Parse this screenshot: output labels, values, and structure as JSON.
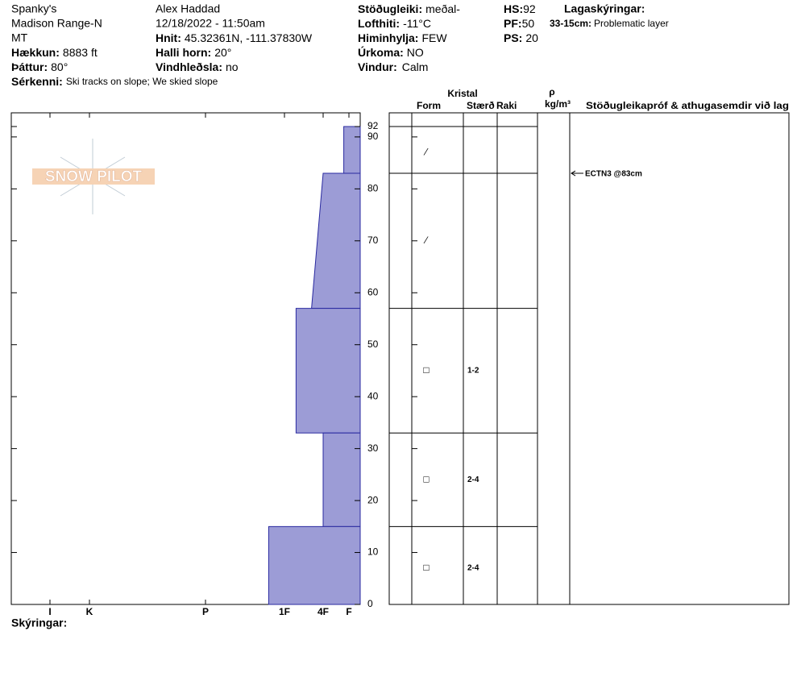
{
  "header": {
    "site": "Spanky's",
    "range": "Madison Range-N",
    "state": "MT",
    "observer": "Alex Haddad",
    "datetime": "12/18/2022 - 11:50am",
    "elevation": {
      "label": "Hækkun:",
      "value": "8883 ft"
    },
    "aspect": {
      "label": "Þáttur:",
      "value": "80°"
    },
    "features": {
      "label": "Sérkenni:",
      "value": "Ski tracks on slope; We skied slope"
    },
    "coords": {
      "label": "Hnit:",
      "value": "45.32361N, -111.37830W"
    },
    "slope": {
      "label": "Halli horn:",
      "value": "20°"
    },
    "wind_loading": {
      "label": "Vindhleðsla:",
      "value": "no"
    },
    "stability": {
      "label": "Stöðugleiki:",
      "value": "meðal-"
    },
    "air_temp": {
      "label": "Lofthiti:",
      "value": "-11°C"
    },
    "sky": {
      "label": "Himinhylja:",
      "value": "FEW"
    },
    "precip": {
      "label": "Úrkoma:",
      "value": "NO"
    },
    "wind": {
      "label": "Vindur:",
      "value": "Calm"
    },
    "hs": {
      "label": "HS:",
      "value": "92"
    },
    "pf": {
      "label": "PF:",
      "value": "50"
    },
    "ps": {
      "label": "PS:",
      "value": "20"
    },
    "layer_notes": {
      "title": "Lagaskýringar:",
      "range": "33-15cm:",
      "text": "Problematic layer"
    }
  },
  "logo": {
    "text": "SNOW PILOT"
  },
  "chart_data": {
    "type": "snow-profile",
    "ylim": [
      0,
      92
    ],
    "yticks": [
      0,
      10,
      20,
      30,
      40,
      50,
      60,
      70,
      80,
      90,
      92
    ],
    "xticks": [
      {
        "value": 6,
        "label": "I"
      },
      {
        "value": 5,
        "label": "K"
      },
      {
        "value": 4,
        "label": "P"
      },
      {
        "value": 3,
        "label": "1F"
      },
      {
        "value": 2,
        "label": "4F"
      },
      {
        "value": 1,
        "label": "F"
      }
    ],
    "layers": [
      {
        "top": 92,
        "bottom": 83,
        "hardness": [
          1.2,
          1.2
        ]
      },
      {
        "top": 83,
        "bottom": 57,
        "hardness": [
          2.0,
          2.3
        ]
      },
      {
        "top": 57,
        "bottom": 33,
        "hardness": [
          2.7,
          2.7
        ]
      },
      {
        "top": 33,
        "bottom": 15,
        "hardness": [
          2.0,
          2.0
        ]
      },
      {
        "top": 15,
        "bottom": 0,
        "hardness": [
          3.2,
          3.2
        ]
      }
    ],
    "grains": [
      {
        "depth": 87,
        "form": "⁄",
        "size": null
      },
      {
        "depth": 70,
        "form": "⁄",
        "size": null
      },
      {
        "depth": 45,
        "form": "□",
        "size": "1-2"
      },
      {
        "depth": 24,
        "form": "□",
        "size": "2-4"
      },
      {
        "depth": 7,
        "form": "□",
        "size": "2-4"
      }
    ],
    "tests": [
      {
        "depth": 83,
        "label": "ECTN3 @83cm"
      }
    ],
    "columns": {
      "crystal": "Kristal",
      "form": "Form",
      "size": "Stærð",
      "moisture": "Raki",
      "rho": "ρ",
      "density_unit": "kg/m³",
      "comments": "Stöðugleikapróf & athugasemdir við lag"
    },
    "notes_label": "Skýringar:"
  }
}
